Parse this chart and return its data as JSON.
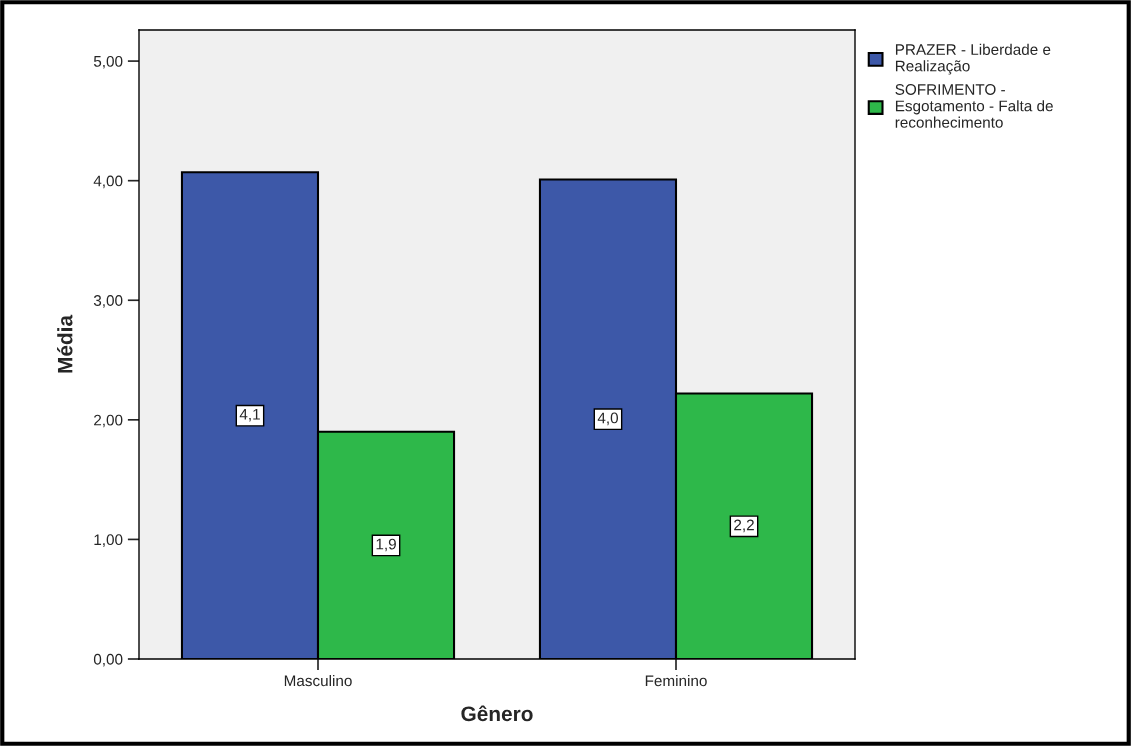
{
  "chart_data": {
    "type": "bar",
    "xlabel": "Gênero",
    "ylabel": "Média",
    "categories": [
      "Masculino",
      "Feminino"
    ],
    "series": [
      {
        "name": "PRAZER - Liberdade e\nRealização",
        "color": "#3d58a8",
        "values": [
          4.07,
          4.01
        ],
        "value_labels": [
          "4,1",
          "4,0"
        ]
      },
      {
        "name": "SOFRIMENTO -\nEsgotamento - Falta de\nreconhecimento",
        "color": "#2eb84a",
        "values": [
          1.9,
          2.22
        ],
        "value_labels": [
          "1,9",
          "2,2"
        ]
      }
    ],
    "ylim": [
      0,
      5.26
    ],
    "yticks": [
      {
        "value": 0,
        "label": "0,00"
      },
      {
        "value": 1,
        "label": "1,00"
      },
      {
        "value": 2,
        "label": "2,00"
      },
      {
        "value": 3,
        "label": "3,00"
      },
      {
        "value": 4,
        "label": "4,00"
      },
      {
        "value": 5,
        "label": "5,00"
      }
    ],
    "grid": false,
    "legend": "top right"
  }
}
